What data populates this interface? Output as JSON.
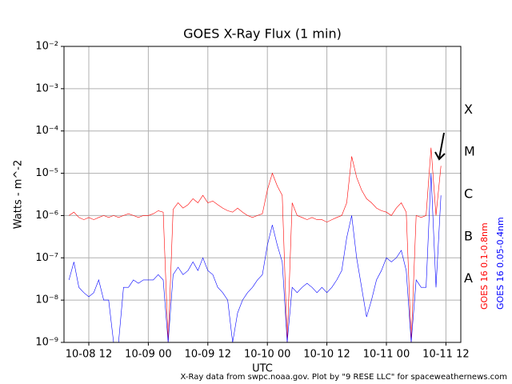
{
  "chart_data": {
    "type": "line",
    "title": "GOES X-Ray Flux (1 min)",
    "xlabel": "UTC",
    "ylabel": "Watts - m^-2",
    "footer": "X-Ray data from swpc.noaa.gov. Plot by \"9 RESE LLC\" for spaceweathernews.com",
    "class_labels": [
      "X",
      "M",
      "C",
      "B",
      "A"
    ],
    "log_y": true,
    "grid": true,
    "xlim": [
      "10-08 07",
      "10-11 15"
    ],
    "xticks": [
      "10-08 12",
      "10-09 00",
      "10-09 12",
      "10-10 00",
      "10-10 12",
      "10-11 00",
      "10-11 12"
    ],
    "ylim": [
      1e-09,
      0.01
    ],
    "yticks": [
      {
        "value": 1e-09,
        "label": "10⁻⁹"
      },
      {
        "value": 1e-08,
        "label": "10⁻⁸"
      },
      {
        "value": 1e-07,
        "label": "10⁻⁷"
      },
      {
        "value": 1e-06,
        "label": "10⁻⁶"
      },
      {
        "value": 1e-05,
        "label": "10⁻⁵"
      },
      {
        "value": 0.0001,
        "label": "10⁻⁴"
      },
      {
        "value": 0.001,
        "label": "10⁻³"
      },
      {
        "value": 0.01,
        "label": "10⁻²"
      }
    ],
    "x": [
      "10-08 08",
      "10-08 09",
      "10-08 10",
      "10-08 11",
      "10-08 12",
      "10-08 13",
      "10-08 14",
      "10-08 15",
      "10-08 16",
      "10-08 17",
      "10-08 18",
      "10-08 19",
      "10-08 20",
      "10-08 21",
      "10-08 22",
      "10-08 23",
      "10-09 00",
      "10-09 01",
      "10-09 02",
      "10-09 03",
      "10-09 04",
      "10-09 05",
      "10-09 06",
      "10-09 07",
      "10-09 08",
      "10-09 09",
      "10-09 10",
      "10-09 11",
      "10-09 12",
      "10-09 13",
      "10-09 14",
      "10-09 15",
      "10-09 16",
      "10-09 17",
      "10-09 18",
      "10-09 19",
      "10-09 20",
      "10-09 21",
      "10-09 22",
      "10-09 23",
      "10-10 00",
      "10-10 01",
      "10-10 02",
      "10-10 03",
      "10-10 04",
      "10-10 05",
      "10-10 06",
      "10-10 07",
      "10-10 08",
      "10-10 09",
      "10-10 10",
      "10-10 11",
      "10-10 12",
      "10-10 13",
      "10-10 14",
      "10-10 15",
      "10-10 16",
      "10-10 17",
      "10-10 18",
      "10-10 19",
      "10-10 20",
      "10-10 21",
      "10-10 22",
      "10-10 23",
      "10-11 00",
      "10-11 01",
      "10-11 02",
      "10-11 03",
      "10-11 04",
      "10-11 05",
      "10-11 06",
      "10-11 07",
      "10-11 08",
      "10-11 09",
      "10-11 10",
      "10-11 11"
    ],
    "series": [
      {
        "name": "GOES 16 0.1-0.8nm",
        "color": "#ff0000",
        "values": [
          1e-06,
          1.2e-06,
          9e-07,
          8e-07,
          9e-07,
          8e-07,
          9e-07,
          1e-06,
          9e-07,
          1e-06,
          9e-07,
          1e-06,
          1.1e-06,
          1e-06,
          9e-07,
          1e-06,
          1e-06,
          1.1e-06,
          1.3e-06,
          1.2e-06,
          1e-09,
          1.4e-06,
          2e-06,
          1.5e-06,
          1.8e-06,
          2.5e-06,
          2e-06,
          3e-06,
          2e-06,
          2.2e-06,
          1.8e-06,
          1.5e-06,
          1.3e-06,
          1.2e-06,
          1.5e-06,
          1.2e-06,
          1e-06,
          9e-07,
          1e-06,
          1.1e-06,
          4e-06,
          1e-05,
          5e-06,
          3e-06,
          1e-09,
          2e-06,
          1e-06,
          9e-07,
          8e-07,
          9e-07,
          8e-07,
          8e-07,
          7e-07,
          8e-07,
          9e-07,
          1e-06,
          2e-06,
          2.5e-05,
          8e-06,
          4e-06,
          2.5e-06,
          2e-06,
          1.5e-06,
          1.3e-06,
          1.2e-06,
          1e-06,
          1.5e-06,
          2e-06,
          1.2e-06,
          1e-09,
          1e-06,
          9e-07,
          1e-06,
          4e-05,
          1e-06,
          1.5e-05
        ]
      },
      {
        "name": "GOES 16 0.05-0.4nm",
        "color": "#0000ff",
        "values": [
          3e-08,
          8e-08,
          2e-08,
          1.5e-08,
          1.2e-08,
          1.5e-08,
          3e-08,
          1e-08,
          1e-08,
          1e-09,
          1e-09,
          2e-08,
          2e-08,
          3e-08,
          2.5e-08,
          3e-08,
          3e-08,
          3e-08,
          4e-08,
          3e-08,
          1e-09,
          4e-08,
          6e-08,
          4e-08,
          5e-08,
          8e-08,
          5e-08,
          1e-07,
          5e-08,
          4e-08,
          2e-08,
          1.5e-08,
          1e-08,
          1e-09,
          5e-09,
          1e-08,
          1.5e-08,
          2e-08,
          3e-08,
          4e-08,
          2e-07,
          6e-07,
          2e-07,
          8e-08,
          1e-09,
          2e-08,
          1.5e-08,
          2e-08,
          2.5e-08,
          2e-08,
          1.5e-08,
          2e-08,
          1.5e-08,
          2e-08,
          3e-08,
          5e-08,
          3e-07,
          1e-06,
          1e-07,
          2e-08,
          4e-09,
          1e-08,
          3e-08,
          5e-08,
          1e-07,
          8e-08,
          1e-07,
          1.5e-07,
          5e-08,
          1e-09,
          3e-08,
          2e-08,
          2e-08,
          1e-05,
          2e-08,
          3e-06
        ]
      }
    ]
  }
}
